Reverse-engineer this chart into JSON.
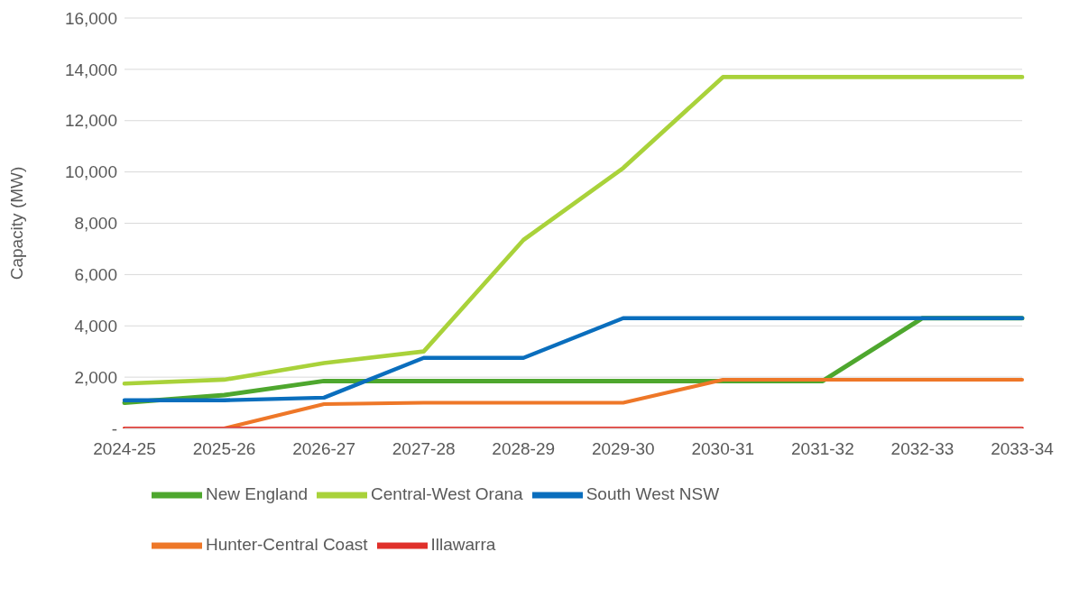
{
  "chart_data": {
    "type": "line",
    "ylabel": "Capacity (MW)",
    "categories": [
      "2024-25",
      "2025-26",
      "2026-27",
      "2027-28",
      "2028-29",
      "2029-30",
      "2030-31",
      "2031-32",
      "2032-33",
      "2033-34"
    ],
    "series": [
      {
        "name": "New England",
        "color": "#4ea72e",
        "values": [
          1000,
          1300,
          1850,
          1850,
          1850,
          1850,
          1850,
          1850,
          4300,
          4300
        ]
      },
      {
        "name": "Central-West Orana",
        "color": "#a9d23a",
        "values": [
          1750,
          1900,
          2550,
          3000,
          7350,
          10150,
          13700,
          13700,
          13700,
          13700
        ]
      },
      {
        "name": "South West NSW",
        "color": "#0a6ebd",
        "values": [
          1100,
          1100,
          1200,
          2750,
          2750,
          4300,
          4300,
          4300,
          4300,
          4300
        ]
      },
      {
        "name": "Hunter-Central Coast",
        "color": "#ee7728",
        "values": [
          0,
          0,
          950,
          1000,
          1000,
          1000,
          1900,
          1900,
          1900,
          1900
        ]
      },
      {
        "name": "Illawarra",
        "color": "#e0302a",
        "values": [
          0,
          0,
          0,
          0,
          0,
          0,
          0,
          0,
          0,
          0
        ]
      }
    ],
    "ylim": [
      0,
      16000
    ],
    "yticks": [
      {
        "value": 0,
        "label": "-"
      },
      {
        "value": 2000,
        "label": "2,000"
      },
      {
        "value": 4000,
        "label": "4,000"
      },
      {
        "value": 6000,
        "label": "6,000"
      },
      {
        "value": 8000,
        "label": "8,000"
      },
      {
        "value": 10000,
        "label": "10,000"
      },
      {
        "value": 12000,
        "label": "12,000"
      },
      {
        "value": 14000,
        "label": "14,000"
      },
      {
        "value": 16000,
        "label": "16,000"
      }
    ],
    "grid": "y",
    "legend": "bottom",
    "marker": "none",
    "line_style": "solid"
  }
}
